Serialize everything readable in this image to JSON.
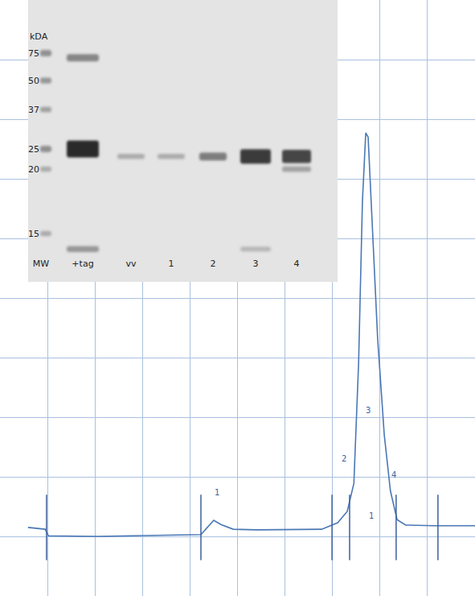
{
  "chart_data": {
    "type": "line",
    "x": [
      5.9,
      9.5,
      10.2,
      20.3,
      42.3,
      43.7,
      45.0,
      46.5,
      49.1,
      54.1,
      67.7,
      71.1,
      73.1,
      74.5,
      75.5,
      76.3,
      77.0,
      77.5,
      78.3,
      79.5,
      80.9,
      82.2,
      83.6,
      85.4,
      91.4,
      100
    ],
    "values": [
      11.5,
      11.2,
      10.1,
      10.0,
      10.3,
      11.5,
      12.7,
      12.0,
      11.2,
      11.1,
      11.2,
      12.3,
      14.2,
      18.9,
      39.2,
      66.2,
      77.7,
      77.0,
      63.5,
      43.2,
      27.0,
      17.6,
      12.8,
      11.9,
      11.8,
      11.8
    ],
    "color": "#4a78b5",
    "xlim": [
      0,
      100
    ],
    "ylim": [
      0,
      100
    ],
    "xticks": [
      0,
      10,
      20,
      30,
      40,
      50,
      60,
      70,
      80,
      90,
      100
    ],
    "yticks": [
      0,
      10,
      20,
      30,
      40,
      50,
      60,
      70,
      80,
      90,
      100
    ],
    "grid": true,
    "tick_labels": false,
    "fraction_marks": [
      9.8,
      42.3,
      69.9,
      73.6,
      83.4,
      92.2
    ],
    "annotations": [
      {
        "text": "1",
        "x": 45.7,
        "y": 17.3
      },
      {
        "text": "2",
        "x": 72.4,
        "y": 23.0
      },
      {
        "text": "3",
        "x": 77.5,
        "y": 31.1
      },
      {
        "text": "4",
        "x": 82.9,
        "y": 20.3
      },
      {
        "text": "1",
        "x": 78.2,
        "y": 13.5
      }
    ]
  },
  "gel": {
    "unit_label": "kDA",
    "markers": [
      75,
      50,
      37,
      25,
      20,
      15
    ],
    "lanes": [
      "MW",
      "+tag",
      "vv",
      "1",
      "2",
      "3",
      "4"
    ],
    "bands": [
      {
        "lane": "MW",
        "kda": 75,
        "intensity": 0.45
      },
      {
        "lane": "MW",
        "kda": 50,
        "intensity": 0.4
      },
      {
        "lane": "MW",
        "kda": 37,
        "intensity": 0.35
      },
      {
        "lane": "MW",
        "kda": 25,
        "intensity": 0.45
      },
      {
        "lane": "MW",
        "kda": 20,
        "intensity": 0.3
      },
      {
        "lane": "MW",
        "kda": 15,
        "intensity": 0.3
      },
      {
        "lane": "+tag",
        "kda": 70,
        "intensity": 0.5
      },
      {
        "lane": "+tag",
        "kda": 25,
        "intensity": 1
      },
      {
        "lane": "+tag",
        "kda": 14,
        "intensity": 0.4
      },
      {
        "lane": "vv",
        "kda": 23,
        "intensity": 0.3
      },
      {
        "lane": "1",
        "kda": 23,
        "intensity": 0.3
      },
      {
        "lane": "2",
        "kda": 23,
        "intensity": 0.55
      },
      {
        "lane": "3",
        "kda": 23,
        "intensity": 0.9
      },
      {
        "lane": "3",
        "kda": 14,
        "intensity": 0.25
      },
      {
        "lane": "4",
        "kda": 23,
        "intensity": 0.85
      },
      {
        "lane": "4",
        "kda": 20,
        "intensity": 0.35
      }
    ]
  }
}
